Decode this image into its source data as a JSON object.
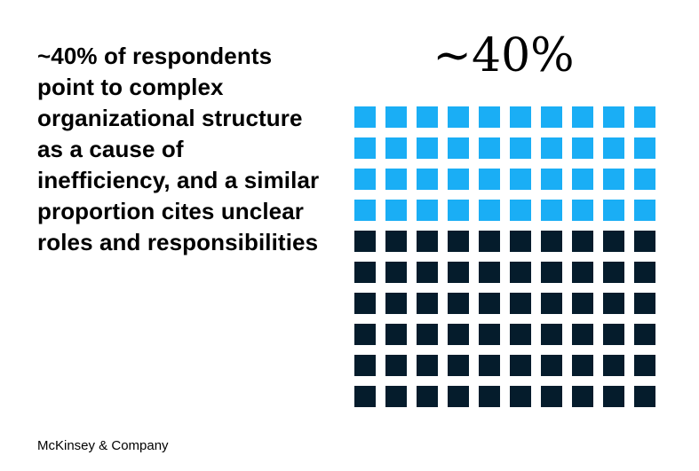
{
  "headline": "~40% of respondents point to complex organizational structure as a cause of inefficiency, and a similar proportion cites unclear roles and responsibilities",
  "footer": {
    "brand": "McKinsey & Company"
  },
  "chart_data": {
    "type": "waffle",
    "title": "~40%",
    "rows": 10,
    "cols": 10,
    "total": 100,
    "highlighted": 40,
    "highlight_color": "#1aaef5",
    "base_color": "#051c2c"
  }
}
